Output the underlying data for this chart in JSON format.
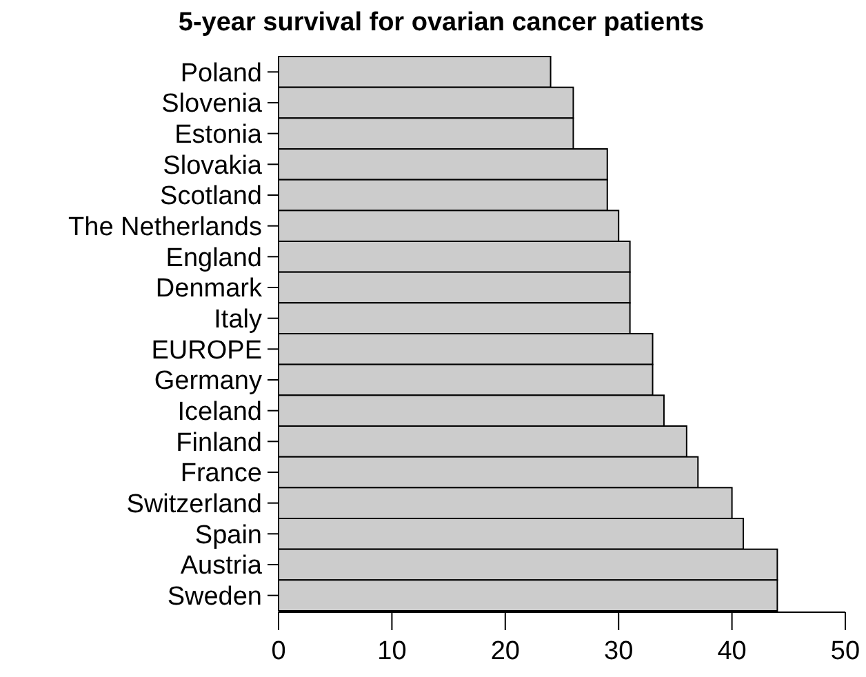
{
  "chart_data": {
    "type": "bar",
    "orientation": "horizontal",
    "title": "5-year survival for ovarian cancer patients",
    "categories": [
      "Poland",
      "Slovenia",
      "Estonia",
      "Slovakia",
      "Scotland",
      "The Netherlands",
      "England",
      "Denmark",
      "Italy",
      "EUROPE",
      "Germany",
      "Iceland",
      "Finland",
      "France",
      "Switzerland",
      "Spain",
      "Austria",
      "Sweden"
    ],
    "values": [
      24,
      26,
      26,
      29,
      29,
      30,
      31,
      31,
      31,
      33,
      33,
      34,
      36,
      37,
      40,
      41,
      44,
      44
    ],
    "color": "#cccccc",
    "xlim": [
      0,
      50
    ],
    "xticks": [
      0,
      10,
      20,
      30,
      40,
      50
    ]
  }
}
